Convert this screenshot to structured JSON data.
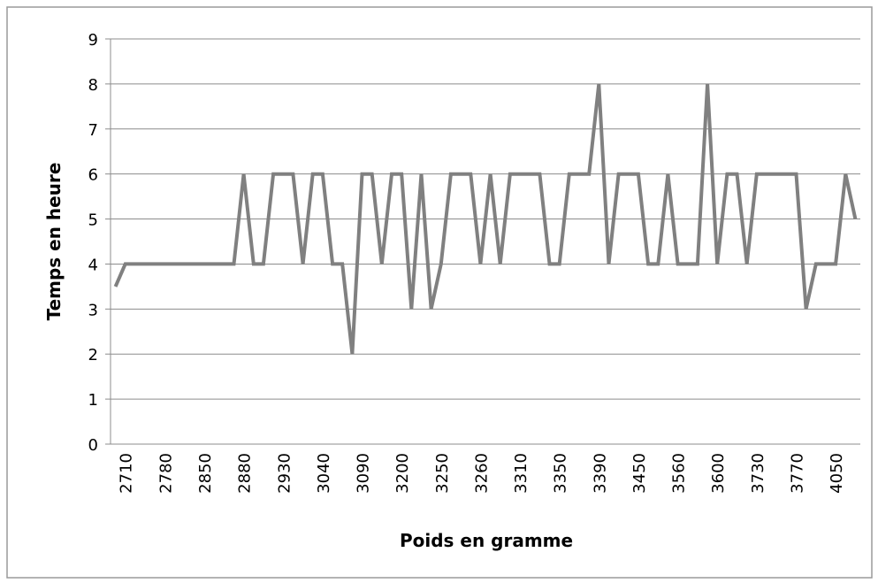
{
  "chart_data": {
    "type": "line",
    "x_label": "Poids en gramme",
    "y_label": "Temps en heure",
    "categories": [
      null,
      "2710",
      null,
      null,
      null,
      "2780",
      null,
      null,
      null,
      "2850",
      null,
      null,
      null,
      "2880",
      null,
      null,
      null,
      "2930",
      null,
      null,
      null,
      "3040",
      null,
      null,
      null,
      "3090",
      null,
      null,
      null,
      "3200",
      null,
      null,
      null,
      "3250",
      null,
      null,
      null,
      "3260",
      null,
      null,
      null,
      "3310",
      null,
      null,
      null,
      "3350",
      null,
      null,
      null,
      "3390",
      null,
      null,
      null,
      "3450",
      null,
      null,
      null,
      "3560",
      null,
      null,
      null,
      "3600",
      null,
      null,
      null,
      "3730",
      null,
      null,
      null,
      "3770",
      null,
      null,
      null,
      "4050",
      null,
      null
    ],
    "series": [
      {
        "name": "Temps",
        "color": "#808080",
        "values": [
          3.5,
          4,
          4,
          4,
          4,
          4,
          4,
          4,
          4,
          4,
          4,
          4,
          4,
          6,
          4,
          4,
          6,
          6,
          6,
          4,
          6,
          6,
          4,
          4,
          2,
          6,
          6,
          4,
          6,
          6,
          3,
          6,
          3,
          4,
          6,
          6,
          6,
          4,
          6,
          4,
          6,
          6,
          6,
          6,
          4,
          4,
          6,
          6,
          6,
          8,
          4,
          6,
          6,
          6,
          4,
          4,
          6,
          4,
          4,
          4,
          8,
          4,
          6,
          6,
          4,
          6,
          6,
          6,
          6,
          6,
          3,
          4,
          4,
          4,
          6,
          5
        ]
      }
    ],
    "ylim": [
      0,
      9
    ],
    "yticks": [
      0,
      1,
      2,
      3,
      4,
      5,
      6,
      7,
      8,
      9
    ],
    "grid": true
  }
}
